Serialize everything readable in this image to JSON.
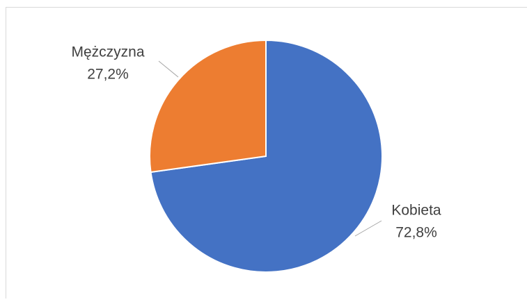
{
  "chart_data": {
    "type": "pie",
    "categories": [
      "Kobieta",
      "Mężczyzna"
    ],
    "values": [
      72.8,
      27.2
    ],
    "value_labels": [
      "72,8%",
      "27,2%"
    ],
    "colors": [
      "#4472c4",
      "#ed7d31"
    ]
  }
}
